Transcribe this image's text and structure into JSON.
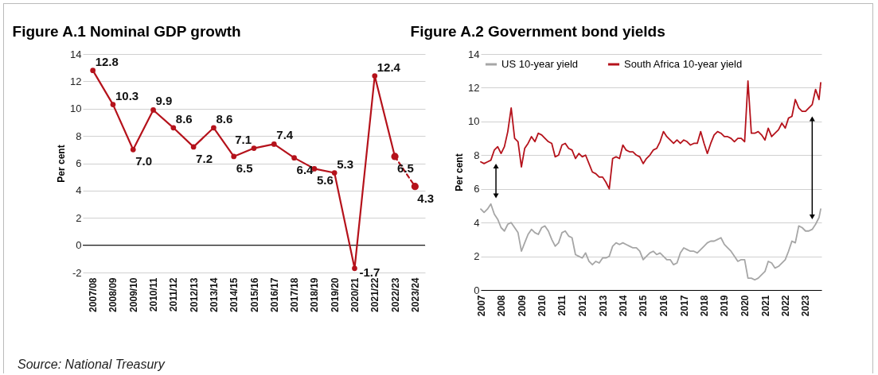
{
  "chart_data": [
    {
      "type": "line",
      "title": "Figure A.1 Nominal GDP growth",
      "ylabel": "Per cent",
      "categories": [
        "2007/08",
        "2008/09",
        "2009/10",
        "2010/11",
        "2011/12",
        "2012/13",
        "2013/14",
        "2014/15",
        "2015/16",
        "2016/17",
        "2017/18",
        "2018/19",
        "2019/20",
        "2020/21",
        "2021/22",
        "2022/23",
        "2023/24"
      ],
      "series": [
        {
          "color": "#b5121b",
          "line_style": "solid",
          "values": [
            12.8,
            10.3,
            7.0,
            9.9,
            8.6,
            7.2,
            8.6,
            6.5,
            7.1,
            7.4,
            6.4,
            5.6,
            5.3,
            -1.7,
            12.4,
            6.5,
            null
          ],
          "value_labels": [
            "12.8",
            "10.3",
            "7.0",
            "9.9",
            "8.6",
            "7.2",
            "8.6",
            "6.5",
            "7.1",
            "7.4",
            "6.4",
            "5.6",
            "5.3",
            "-1.7",
            "12.4",
            "6.5",
            null
          ]
        },
        {
          "color": "#b5121b",
          "line_style": "dashed",
          "values": [
            null,
            null,
            null,
            null,
            null,
            null,
            null,
            null,
            null,
            null,
            null,
            null,
            null,
            null,
            null,
            6.5,
            4.3
          ],
          "value_labels": [
            null,
            null,
            null,
            null,
            null,
            null,
            null,
            null,
            null,
            null,
            null,
            null,
            null,
            null,
            null,
            null,
            "4.3"
          ]
        }
      ],
      "ylim": [
        -2,
        14
      ],
      "yticks": [
        -2,
        0,
        2,
        4,
        6,
        8,
        10,
        12,
        14
      ],
      "grid": "y",
      "marker": "circle",
      "legend": false,
      "ref_lines": [
        {
          "axis": "y",
          "value": 0,
          "color": "#000000"
        }
      ],
      "annotations": [
        "Source: National Treasury"
      ]
    },
    {
      "type": "line",
      "title": "Figure A.2 Government bond yields",
      "ylabel": "Per cent",
      "x": [
        "2007-01",
        "2007-03",
        "2007-05",
        "2007-07",
        "2007-09",
        "2007-11",
        "2008-01",
        "2008-03",
        "2008-05",
        "2008-07",
        "2008-09",
        "2008-11",
        "2009-01",
        "2009-03",
        "2009-05",
        "2009-07",
        "2009-09",
        "2009-11",
        "2010-01",
        "2010-03",
        "2010-05",
        "2010-07",
        "2010-09",
        "2010-11",
        "2011-01",
        "2011-03",
        "2011-05",
        "2011-07",
        "2011-09",
        "2011-11",
        "2012-01",
        "2012-03",
        "2012-05",
        "2012-07",
        "2012-09",
        "2012-11",
        "2013-01",
        "2013-03",
        "2013-05",
        "2013-07",
        "2013-09",
        "2013-11",
        "2014-01",
        "2014-03",
        "2014-05",
        "2014-07",
        "2014-09",
        "2014-11",
        "2015-01",
        "2015-03",
        "2015-05",
        "2015-07",
        "2015-09",
        "2015-11",
        "2016-01",
        "2016-03",
        "2016-05",
        "2016-07",
        "2016-09",
        "2016-11",
        "2017-01",
        "2017-03",
        "2017-05",
        "2017-07",
        "2017-09",
        "2017-11",
        "2018-01",
        "2018-03",
        "2018-05",
        "2018-07",
        "2018-09",
        "2018-11",
        "2019-01",
        "2019-03",
        "2019-05",
        "2019-07",
        "2019-09",
        "2019-11",
        "2020-01",
        "2020-03",
        "2020-05",
        "2020-07",
        "2020-09",
        "2020-11",
        "2021-01",
        "2021-03",
        "2021-05",
        "2021-07",
        "2021-09",
        "2021-11",
        "2022-01",
        "2022-03",
        "2022-05",
        "2022-07",
        "2022-09",
        "2022-11",
        "2023-01",
        "2023-03",
        "2023-05",
        "2023-07",
        "2023-09",
        "2023-10"
      ],
      "series": [
        {
          "name": "US 10-year yield",
          "color": "#a6a6a6",
          "values": [
            4.8,
            4.6,
            4.8,
            5.1,
            4.5,
            4.2,
            3.7,
            3.5,
            3.9,
            4.0,
            3.7,
            3.4,
            2.3,
            2.8,
            3.3,
            3.6,
            3.4,
            3.3,
            3.7,
            3.8,
            3.5,
            3.0,
            2.6,
            2.8,
            3.4,
            3.5,
            3.2,
            3.1,
            2.1,
            2.0,
            1.9,
            2.2,
            1.7,
            1.5,
            1.7,
            1.6,
            1.9,
            1.9,
            2.0,
            2.6,
            2.8,
            2.7,
            2.8,
            2.7,
            2.6,
            2.5,
            2.5,
            2.3,
            1.8,
            2.0,
            2.2,
            2.3,
            2.1,
            2.2,
            2.0,
            1.8,
            1.8,
            1.5,
            1.6,
            2.2,
            2.5,
            2.4,
            2.3,
            2.3,
            2.2,
            2.4,
            2.6,
            2.8,
            2.9,
            2.9,
            3.0,
            3.1,
            2.7,
            2.5,
            2.3,
            2.0,
            1.7,
            1.8,
            1.8,
            0.7,
            0.7,
            0.6,
            0.7,
            0.9,
            1.1,
            1.7,
            1.6,
            1.3,
            1.4,
            1.6,
            1.8,
            2.3,
            2.9,
            2.8,
            3.8,
            3.7,
            3.5,
            3.5,
            3.6,
            3.9,
            4.3,
            4.8
          ]
        },
        {
          "name": "South Africa 10-year yield",
          "color": "#b5121b",
          "values": [
            7.6,
            7.5,
            7.6,
            7.7,
            8.3,
            8.5,
            8.1,
            8.5,
            9.4,
            10.8,
            9.0,
            8.8,
            7.3,
            8.4,
            8.7,
            9.1,
            8.8,
            9.3,
            9.2,
            9.0,
            8.8,
            8.7,
            7.9,
            8.0,
            8.6,
            8.7,
            8.4,
            8.3,
            7.8,
            8.1,
            7.9,
            8.0,
            7.5,
            7.0,
            6.9,
            6.7,
            6.7,
            6.4,
            6.0,
            7.8,
            7.9,
            7.8,
            8.6,
            8.3,
            8.2,
            8.2,
            8.0,
            7.9,
            7.5,
            7.8,
            8.0,
            8.3,
            8.4,
            8.8,
            9.4,
            9.1,
            8.9,
            8.7,
            8.9,
            8.7,
            8.9,
            8.8,
            8.6,
            8.7,
            8.7,
            9.4,
            8.7,
            8.1,
            8.7,
            9.2,
            9.4,
            9.3,
            9.1,
            9.1,
            9.0,
            8.8,
            9.0,
            9.0,
            8.8,
            12.4,
            9.3,
            9.3,
            9.4,
            9.2,
            8.9,
            9.6,
            9.1,
            9.3,
            9.5,
            9.9,
            9.6,
            10.2,
            10.3,
            11.3,
            10.8,
            10.6,
            10.6,
            10.8,
            11.0,
            11.9,
            11.3,
            12.3
          ]
        }
      ],
      "xlim": [
        "2007-01-01",
        "2023-10-15"
      ],
      "xticks": [
        {
          "value": "2007",
          "label": "2007"
        },
        {
          "value": "2008",
          "label": "2008"
        },
        {
          "value": "2009",
          "label": "2009"
        },
        {
          "value": "2010",
          "label": "2010"
        },
        {
          "value": "2011",
          "label": "2011"
        },
        {
          "value": "2012",
          "label": "2012"
        },
        {
          "value": "2013",
          "label": "2013"
        },
        {
          "value": "2014",
          "label": "2014"
        },
        {
          "value": "2015",
          "label": "2015"
        },
        {
          "value": "2016",
          "label": "2016"
        },
        {
          "value": "2017",
          "label": "2017"
        },
        {
          "value": "2018",
          "label": "2018"
        },
        {
          "value": "2019",
          "label": "2019"
        },
        {
          "value": "2020",
          "label": "2020"
        },
        {
          "value": "2021",
          "label": "2021"
        },
        {
          "value": "2022",
          "label": "2022"
        },
        {
          "value": "2023",
          "label": "2023"
        }
      ],
      "ylim": [
        0,
        14
      ],
      "yticks": [
        0,
        2,
        4,
        6,
        8,
        10,
        12,
        14
      ],
      "grid": "y",
      "marker": "none",
      "legend": "top left"
    }
  ]
}
